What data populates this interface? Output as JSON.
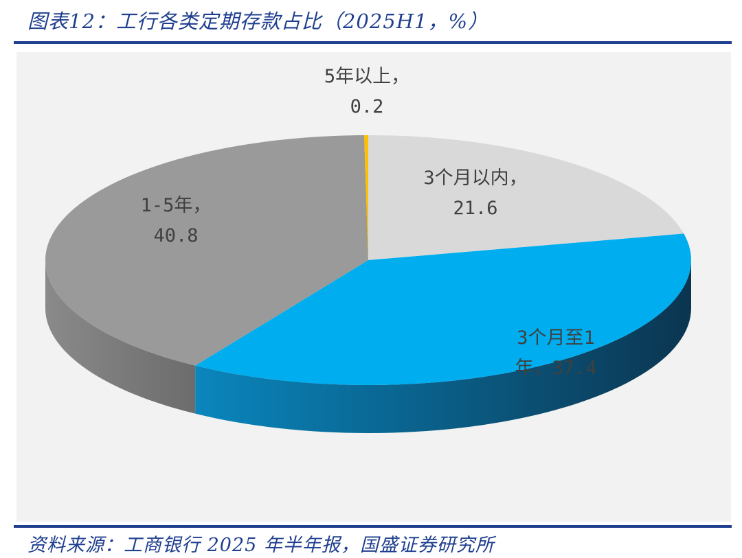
{
  "figure": {
    "title": "图表12：工行各类定期存款占比（2025H1，%）",
    "source": "资料来源：工商银行 2025 年半年报，国盛证券研究所"
  },
  "chart_data": {
    "type": "pie",
    "title": "",
    "slices": [
      {
        "label": "3个月以内",
        "value": 21.6,
        "color": "#d9d9d9",
        "side_color": "#b0b0b0",
        "data_label": [
          "3个月以内，",
          "21.6"
        ]
      },
      {
        "label": "3个月至1年",
        "value": 37.4,
        "color": "#00aeef",
        "side_color": "#0e4a6c",
        "data_label": [
          "3个月至1",
          "年，37.4"
        ]
      },
      {
        "label": "1-5年",
        "value": 40.8,
        "color": "#9a9a9a",
        "side_color": "#7f7f7f",
        "data_label": [
          "1-5年，",
          "40.8"
        ]
      },
      {
        "label": "5年以上",
        "value": 0.2,
        "color": "#ffc000",
        "side_color": "#c99800",
        "data_label": [
          "5年以上，",
          "0.2"
        ]
      }
    ],
    "unit": "%",
    "style": "3d-pie",
    "start_angle": "12 o'clock",
    "direction": "clockwise"
  }
}
